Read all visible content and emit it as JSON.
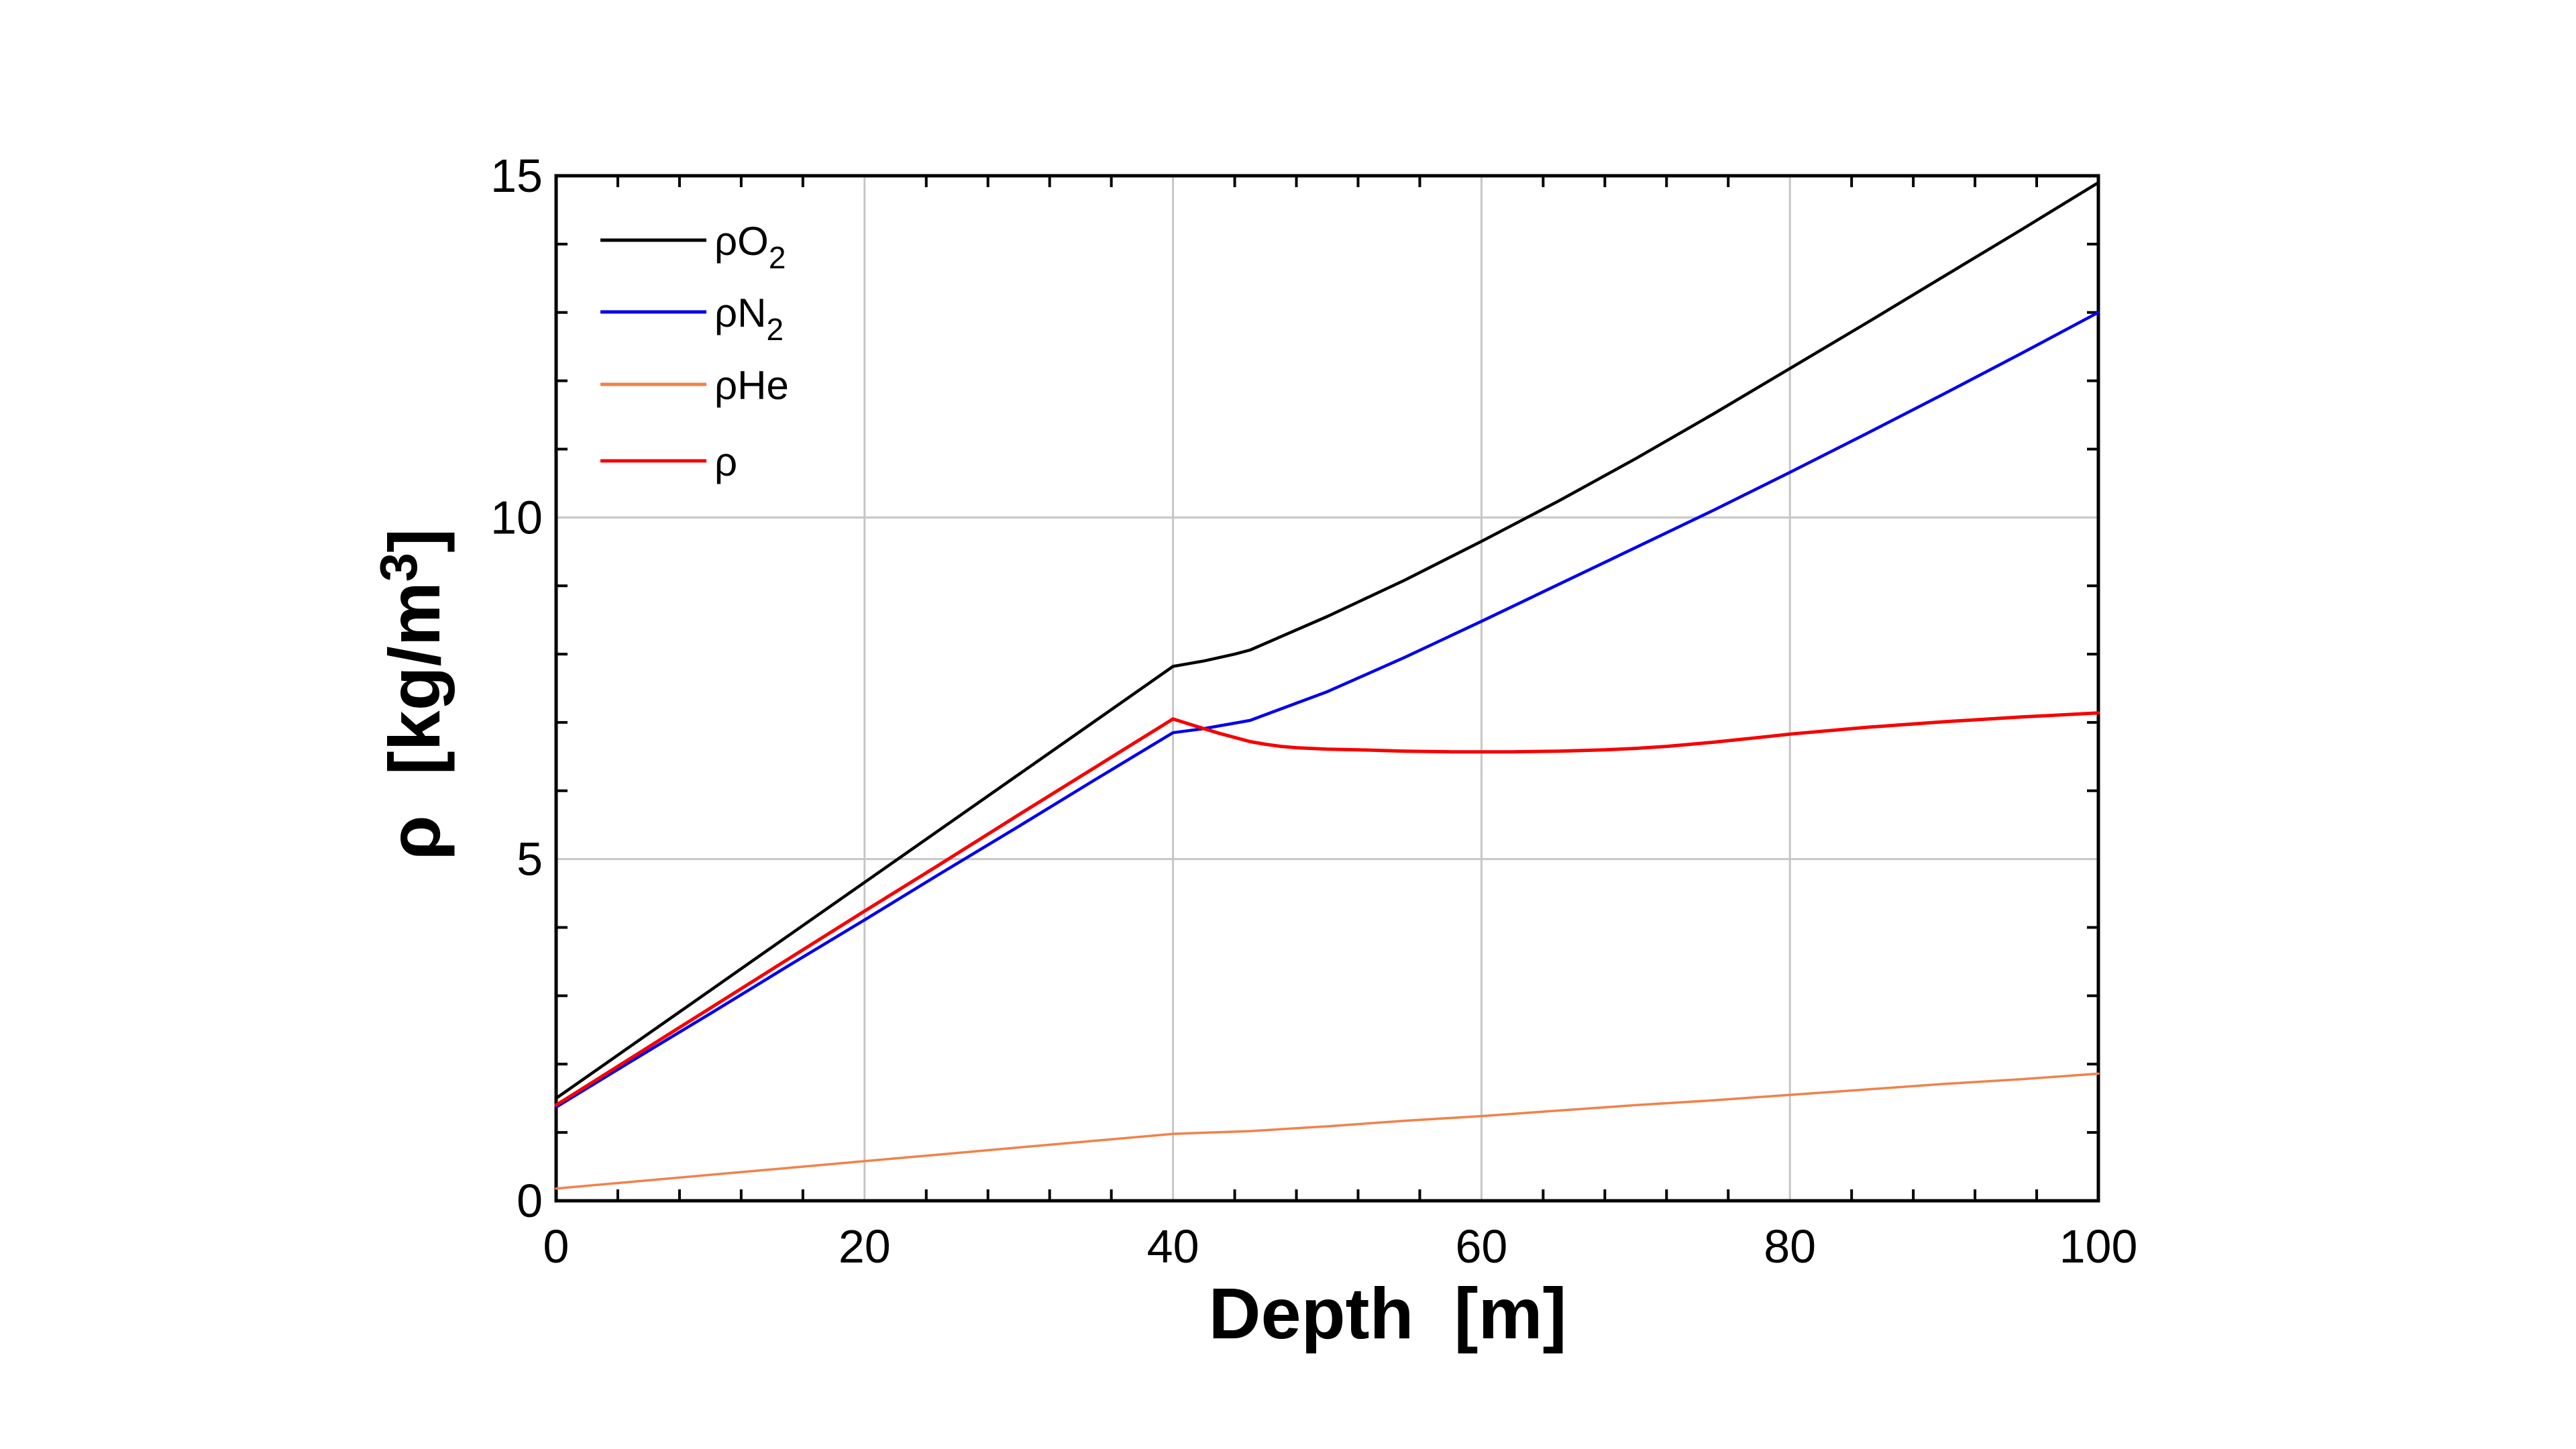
{
  "chart_data": {
    "type": "line",
    "title": "",
    "xlabel": "Depth  [m]",
    "ylabel_parts": {
      "prefix": "ρ  [kg/m",
      "sup": "3",
      "suffix": "]"
    },
    "xlim": [
      0,
      100
    ],
    "ylim": [
      0,
      15
    ],
    "x_major_ticks": [
      0,
      20,
      40,
      60,
      80,
      100
    ],
    "y_major_ticks": [
      0,
      5,
      10,
      15
    ],
    "x_minor_step": 4,
    "y_minor_step": 1,
    "grid": true,
    "grid_color": "#c6c6c6",
    "axis_color": "#000000",
    "background_color": "#ffffff",
    "legend_position": "upper-left-inside",
    "series": [
      {
        "key": "rhoO2",
        "legend_main": "ρO",
        "legend_sub": "2",
        "color": "#000000",
        "stroke_width": 4.5,
        "points": [
          [
            0,
            1.5
          ],
          [
            5,
            2.29
          ],
          [
            10,
            3.08
          ],
          [
            15,
            3.87
          ],
          [
            20,
            4.66
          ],
          [
            25,
            5.45
          ],
          [
            30,
            6.24
          ],
          [
            35,
            7.03
          ],
          [
            40,
            7.82
          ],
          [
            41,
            7.86
          ],
          [
            42,
            7.9
          ],
          [
            43,
            7.95
          ],
          [
            44,
            8.0
          ],
          [
            45,
            8.06
          ],
          [
            50,
            8.55
          ],
          [
            55,
            9.08
          ],
          [
            60,
            9.65
          ],
          [
            65,
            10.24
          ],
          [
            70,
            10.86
          ],
          [
            75,
            11.51
          ],
          [
            80,
            12.18
          ],
          [
            85,
            12.85
          ],
          [
            90,
            13.53
          ],
          [
            95,
            14.21
          ],
          [
            100,
            14.9
          ]
        ]
      },
      {
        "key": "rhoN2",
        "legend_main": "ρN",
        "legend_sub": "2",
        "color": "#0000ee",
        "stroke_width": 4.5,
        "points": [
          [
            0,
            1.37
          ],
          [
            5,
            2.06
          ],
          [
            10,
            2.74
          ],
          [
            15,
            3.43
          ],
          [
            20,
            4.11
          ],
          [
            25,
            4.8
          ],
          [
            30,
            5.48
          ],
          [
            35,
            6.17
          ],
          [
            40,
            6.85
          ],
          [
            41,
            6.88
          ],
          [
            42,
            6.91
          ],
          [
            43,
            6.95
          ],
          [
            44,
            6.99
          ],
          [
            45,
            7.03
          ],
          [
            50,
            7.45
          ],
          [
            55,
            7.95
          ],
          [
            60,
            8.48
          ],
          [
            65,
            9.02
          ],
          [
            70,
            9.56
          ],
          [
            75,
            10.1
          ],
          [
            80,
            10.66
          ],
          [
            85,
            11.23
          ],
          [
            90,
            11.81
          ],
          [
            95,
            12.4
          ],
          [
            100,
            13.0
          ]
        ]
      },
      {
        "key": "rhoHe",
        "legend_main": "ρHe",
        "legend_sub": "",
        "color": "#f08249",
        "stroke_width": 3.5,
        "points": [
          [
            0,
            0.18
          ],
          [
            5,
            0.28
          ],
          [
            10,
            0.38
          ],
          [
            15,
            0.48
          ],
          [
            20,
            0.58
          ],
          [
            25,
            0.68
          ],
          [
            30,
            0.78
          ],
          [
            35,
            0.88
          ],
          [
            40,
            0.98
          ],
          [
            45,
            1.02
          ],
          [
            50,
            1.09
          ],
          [
            55,
            1.17
          ],
          [
            60,
            1.24
          ],
          [
            65,
            1.32
          ],
          [
            70,
            1.4
          ],
          [
            75,
            1.47
          ],
          [
            80,
            1.55
          ],
          [
            85,
            1.63
          ],
          [
            90,
            1.71
          ],
          [
            95,
            1.78
          ],
          [
            100,
            1.86
          ]
        ]
      },
      {
        "key": "rho",
        "legend_main": "ρ",
        "legend_sub": "",
        "color": "#f60000",
        "stroke_width": 5,
        "points": [
          [
            0,
            1.4
          ],
          [
            5,
            2.11
          ],
          [
            10,
            2.82
          ],
          [
            15,
            3.53
          ],
          [
            20,
            4.24
          ],
          [
            25,
            4.94
          ],
          [
            30,
            5.65
          ],
          [
            35,
            6.35
          ],
          [
            40,
            7.05
          ],
          [
            41,
            6.98
          ],
          [
            42,
            6.91
          ],
          [
            43,
            6.84
          ],
          [
            44,
            6.78
          ],
          [
            45,
            6.72
          ],
          [
            46,
            6.68
          ],
          [
            47,
            6.65
          ],
          [
            48,
            6.63
          ],
          [
            50,
            6.61
          ],
          [
            52,
            6.6
          ],
          [
            55,
            6.58
          ],
          [
            58,
            6.57
          ],
          [
            60,
            6.57
          ],
          [
            62,
            6.57
          ],
          [
            65,
            6.58
          ],
          [
            68,
            6.6
          ],
          [
            70,
            6.62
          ],
          [
            72,
            6.65
          ],
          [
            75,
            6.71
          ],
          [
            78,
            6.78
          ],
          [
            80,
            6.83
          ],
          [
            85,
            6.93
          ],
          [
            90,
            7.01
          ],
          [
            95,
            7.08
          ],
          [
            100,
            7.14
          ]
        ]
      }
    ]
  }
}
